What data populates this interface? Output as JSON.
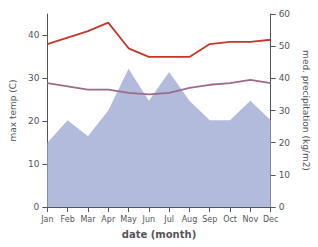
{
  "chart_data": {
    "type": "line",
    "categories": [
      "Jan",
      "Feb",
      "Mar",
      "Apr",
      "May",
      "Jun",
      "Jul",
      "Aug",
      "Sep",
      "Oct",
      "Nov",
      "Dec"
    ],
    "xlabel": "date (month)",
    "ylabel": "max temp (C)",
    "y2label": "med. precipitation (kg/m2)",
    "ylim": [
      0,
      45
    ],
    "yticks": [
      0,
      10,
      20,
      30,
      40
    ],
    "y2lim": [
      0,
      60
    ],
    "y2ticks": [
      0,
      10,
      20,
      30,
      40,
      50,
      60
    ],
    "grid": false,
    "series": [
      {
        "type": "area",
        "color": "#aab4d8",
        "axis": "y2",
        "values": [
          20,
          27,
          22,
          30,
          43,
          33,
          42,
          33,
          27,
          27,
          33,
          27
        ]
      },
      {
        "type": "line",
        "color": "#9b6b8a",
        "axis": "y2",
        "values": [
          38.5,
          37.5,
          36.5,
          36.5,
          35.5,
          35.0,
          35.5,
          37.0,
          38.0,
          38.5,
          39.5,
          38.5
        ]
      },
      {
        "type": "line",
        "color": "#c0392b",
        "values": [
          38,
          39.5,
          41,
          43,
          37,
          35,
          35,
          35,
          38,
          38.5,
          38.5,
          39
        ]
      }
    ]
  }
}
